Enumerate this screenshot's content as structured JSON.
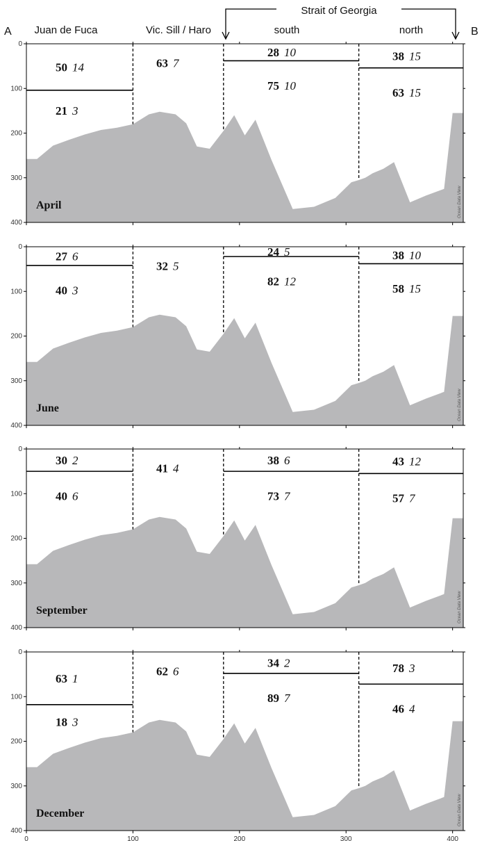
{
  "header": {
    "group_label": "Strait of Georgia",
    "regions": [
      "Juan de Fuca",
      "Vic. Sill / Haro",
      "south",
      "north"
    ],
    "corner_left": "A",
    "corner_right": "B"
  },
  "watermark": "Ocean Data View",
  "colors": {
    "bathymetry_fill": "#b8b8ba",
    "lines": "#000000"
  },
  "chart_data": {
    "type": "area",
    "x": [
      0,
      10,
      25,
      40,
      55,
      70,
      85,
      100,
      115,
      125,
      140,
      150,
      160,
      172,
      185,
      195,
      205,
      215,
      230,
      250,
      270,
      290,
      305,
      312,
      318,
      325,
      335,
      345,
      360,
      375,
      392,
      400,
      410
    ],
    "xlim": [
      0,
      410
    ],
    "xticks": [
      0,
      100,
      200,
      300,
      400
    ],
    "ylim": [
      400,
      0
    ],
    "yticks": [
      0,
      100,
      200,
      300,
      400
    ],
    "bottom_depth": [
      258,
      258,
      228,
      215,
      203,
      193,
      188,
      180,
      158,
      152,
      158,
      178,
      230,
      235,
      195,
      160,
      205,
      170,
      260,
      370,
      365,
      345,
      310,
      305,
      300,
      290,
      280,
      265,
      355,
      340,
      325,
      155,
      155
    ],
    "region_boundaries_x": [
      100,
      185,
      312
    ],
    "panels": [
      {
        "month": "April",
        "interface_depths": [
          104,
          38,
          54
        ],
        "values": [
          {
            "mean": "50",
            "sd": "14"
          },
          {
            "mean": "21",
            "sd": "3"
          },
          {
            "mean": "63",
            "sd": "7"
          },
          {
            "mean": "28",
            "sd": "10"
          },
          {
            "mean": "75",
            "sd": "10"
          },
          {
            "mean": "38",
            "sd": "15"
          },
          {
            "mean": "63",
            "sd": "15"
          }
        ]
      },
      {
        "month": "June",
        "interface_depths": [
          42,
          22,
          38
        ],
        "values": [
          {
            "mean": "27",
            "sd": "6"
          },
          {
            "mean": "40",
            "sd": "3"
          },
          {
            "mean": "32",
            "sd": "5"
          },
          {
            "mean": "24",
            "sd": "5"
          },
          {
            "mean": "82",
            "sd": "12"
          },
          {
            "mean": "38",
            "sd": "10"
          },
          {
            "mean": "58",
            "sd": "15"
          }
        ]
      },
      {
        "month": "September",
        "interface_depths": [
          50,
          50,
          55
        ],
        "values": [
          {
            "mean": "30",
            "sd": "2"
          },
          {
            "mean": "40",
            "sd": "6"
          },
          {
            "mean": "41",
            "sd": "4"
          },
          {
            "mean": "38",
            "sd": "6"
          },
          {
            "mean": "73",
            "sd": "7"
          },
          {
            "mean": "43",
            "sd": "12"
          },
          {
            "mean": "57",
            "sd": "7"
          }
        ]
      },
      {
        "month": "December",
        "interface_depths": [
          118,
          48,
          72
        ],
        "values": [
          {
            "mean": "63",
            "sd": "1"
          },
          {
            "mean": "18",
            "sd": "3"
          },
          {
            "mean": "62",
            "sd": "6"
          },
          {
            "mean": "34",
            "sd": "2"
          },
          {
            "mean": "89",
            "sd": "7"
          },
          {
            "mean": "78",
            "sd": "3"
          },
          {
            "mean": "46",
            "sd": "4"
          }
        ]
      }
    ]
  }
}
